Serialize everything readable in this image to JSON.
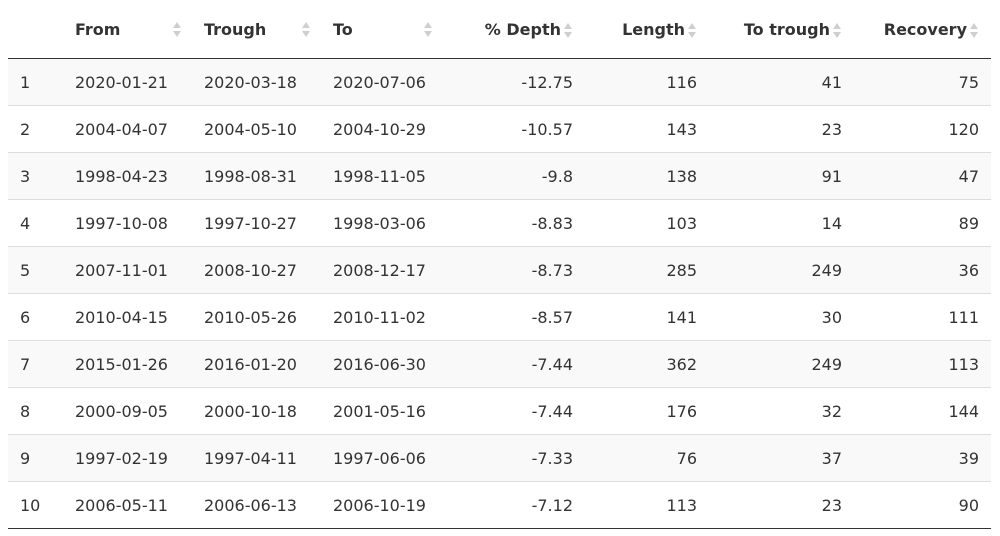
{
  "table": {
    "columns": [
      {
        "label": "",
        "align": "txt"
      },
      {
        "label": "From",
        "align": "txt"
      },
      {
        "label": "Trough",
        "align": "txt"
      },
      {
        "label": "To",
        "align": "txt"
      },
      {
        "label": "% Depth",
        "align": "num"
      },
      {
        "label": "Length",
        "align": "num"
      },
      {
        "label": "To trough",
        "align": "num"
      },
      {
        "label": "Recovery",
        "align": "num"
      }
    ],
    "rows": [
      [
        "1",
        "2020-01-21",
        "2020-03-18",
        "2020-07-06",
        "-12.75",
        "116",
        "41",
        "75"
      ],
      [
        "2",
        "2004-04-07",
        "2004-05-10",
        "2004-10-29",
        "-10.57",
        "143",
        "23",
        "120"
      ],
      [
        "3",
        "1998-04-23",
        "1998-08-31",
        "1998-11-05",
        "-9.8",
        "138",
        "91",
        "47"
      ],
      [
        "4",
        "1997-10-08",
        "1997-10-27",
        "1998-03-06",
        "-8.83",
        "103",
        "14",
        "89"
      ],
      [
        "5",
        "2007-11-01",
        "2008-10-27",
        "2008-12-17",
        "-8.73",
        "285",
        "249",
        "36"
      ],
      [
        "6",
        "2010-04-15",
        "2010-05-26",
        "2010-11-02",
        "-8.57",
        "141",
        "30",
        "111"
      ],
      [
        "7",
        "2015-01-26",
        "2016-01-20",
        "2016-06-30",
        "-7.44",
        "362",
        "249",
        "113"
      ],
      [
        "8",
        "2000-09-05",
        "2000-10-18",
        "2001-05-16",
        "-7.44",
        "176",
        "32",
        "144"
      ],
      [
        "9",
        "1997-02-19",
        "1997-04-11",
        "1997-06-06",
        "-7.33",
        "76",
        "37",
        "39"
      ],
      [
        "10",
        "2006-05-11",
        "2006-06-13",
        "2006-10-19",
        "-7.12",
        "113",
        "23",
        "90"
      ]
    ]
  }
}
